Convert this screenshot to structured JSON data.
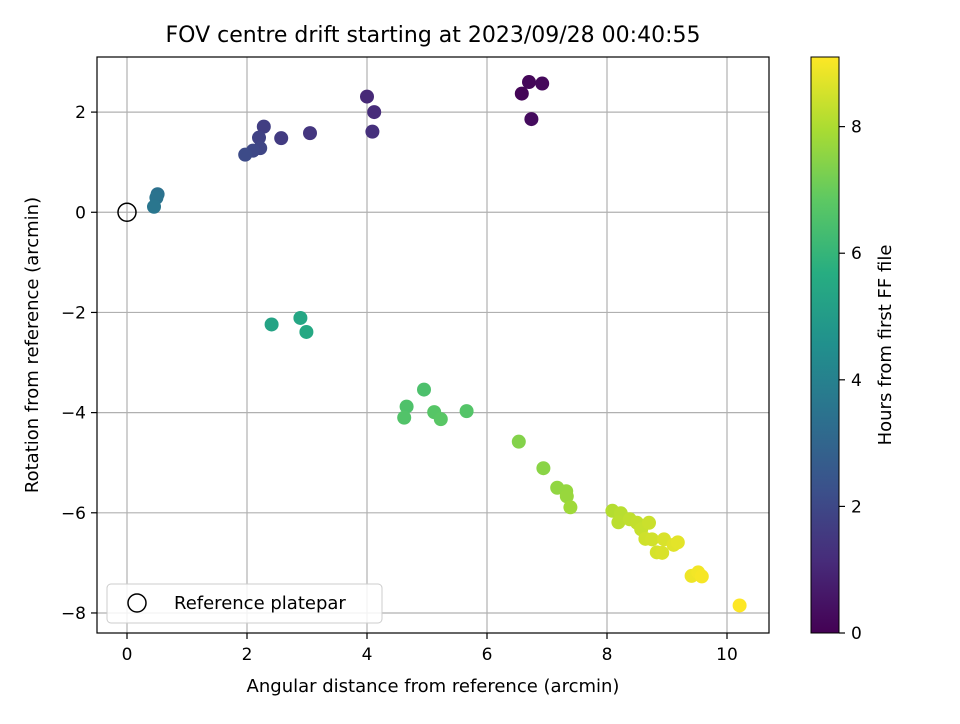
{
  "chart_data": {
    "type": "scatter",
    "title": "FOV centre drift starting at 2023/09/28 00:40:55",
    "xlabel": "Angular distance from reference (arcmin)",
    "ylabel": "Rotation from reference (arcmin)",
    "xlim": [
      -0.5,
      10.7
    ],
    "ylim": [
      -8.4,
      3.1
    ],
    "xticks": [
      0,
      2,
      4,
      6,
      8,
      10
    ],
    "yticks": [
      -8,
      -6,
      -4,
      -2,
      0,
      2
    ],
    "grid": true,
    "legend": {
      "placement": "lower-left",
      "entries": [
        "Reference platepar"
      ]
    },
    "reference_point": {
      "x": 0,
      "y": 0,
      "label": "Reference platepar"
    },
    "colorbar": {
      "label": "Hours from first FF file",
      "colormap": "viridis",
      "range": [
        0,
        9.1
      ],
      "ticks": [
        0,
        2,
        4,
        6,
        8
      ]
    },
    "points": [
      {
        "x": 6.58,
        "y": 2.37,
        "h": 0.1
      },
      {
        "x": 6.7,
        "y": 2.6,
        "h": 0.15
      },
      {
        "x": 6.92,
        "y": 2.57,
        "h": 0.2
      },
      {
        "x": 6.74,
        "y": 1.86,
        "h": 0.3
      },
      {
        "x": 4.0,
        "y": 2.31,
        "h": 1.05
      },
      {
        "x": 4.12,
        "y": 2.0,
        "h": 1.15
      },
      {
        "x": 4.09,
        "y": 1.61,
        "h": 1.25
      },
      {
        "x": 3.05,
        "y": 1.58,
        "h": 1.45
      },
      {
        "x": 2.57,
        "y": 1.48,
        "h": 1.6
      },
      {
        "x": 2.28,
        "y": 1.71,
        "h": 1.7
      },
      {
        "x": 2.2,
        "y": 1.49,
        "h": 1.8
      },
      {
        "x": 2.22,
        "y": 1.28,
        "h": 1.9
      },
      {
        "x": 2.1,
        "y": 1.23,
        "h": 2.0
      },
      {
        "x": 1.97,
        "y": 1.15,
        "h": 2.1
      },
      {
        "x": 0.51,
        "y": 0.36,
        "h": 3.4
      },
      {
        "x": 0.49,
        "y": 0.29,
        "h": 3.5
      },
      {
        "x": 0.45,
        "y": 0.11,
        "h": 3.6
      },
      {
        "x": 2.41,
        "y": -2.24,
        "h": 5.3
      },
      {
        "x": 2.89,
        "y": -2.11,
        "h": 5.4
      },
      {
        "x": 2.99,
        "y": -2.39,
        "h": 5.5
      },
      {
        "x": 4.95,
        "y": -3.54,
        "h": 6.5
      },
      {
        "x": 4.66,
        "y": -3.88,
        "h": 6.55
      },
      {
        "x": 4.62,
        "y": -4.1,
        "h": 6.6
      },
      {
        "x": 5.66,
        "y": -3.97,
        "h": 6.65
      },
      {
        "x": 5.12,
        "y": -3.99,
        "h": 6.7
      },
      {
        "x": 5.23,
        "y": -4.13,
        "h": 6.75
      },
      {
        "x": 6.53,
        "y": -4.58,
        "h": 7.4
      },
      {
        "x": 6.94,
        "y": -5.11,
        "h": 7.5
      },
      {
        "x": 7.17,
        "y": -5.5,
        "h": 7.6
      },
      {
        "x": 7.32,
        "y": -5.57,
        "h": 7.65
      },
      {
        "x": 7.33,
        "y": -5.67,
        "h": 7.7
      },
      {
        "x": 7.39,
        "y": -5.89,
        "h": 7.8
      },
      {
        "x": 8.09,
        "y": -5.96,
        "h": 8.1
      },
      {
        "x": 8.23,
        "y": -6.01,
        "h": 8.15
      },
      {
        "x": 8.19,
        "y": -6.19,
        "h": 8.2
      },
      {
        "x": 8.38,
        "y": -6.13,
        "h": 8.25
      },
      {
        "x": 8.5,
        "y": -6.2,
        "h": 8.3
      },
      {
        "x": 8.57,
        "y": -6.33,
        "h": 8.35
      },
      {
        "x": 8.7,
        "y": -6.2,
        "h": 8.4
      },
      {
        "x": 8.64,
        "y": -6.52,
        "h": 8.45
      },
      {
        "x": 8.75,
        "y": -6.53,
        "h": 8.5
      },
      {
        "x": 8.83,
        "y": -6.79,
        "h": 8.55
      },
      {
        "x": 8.92,
        "y": -6.8,
        "h": 8.6
      },
      {
        "x": 8.95,
        "y": -6.53,
        "h": 8.6
      },
      {
        "x": 9.11,
        "y": -6.64,
        "h": 8.7
      },
      {
        "x": 9.18,
        "y": -6.59,
        "h": 8.75
      },
      {
        "x": 9.41,
        "y": -7.26,
        "h": 8.9
      },
      {
        "x": 9.52,
        "y": -7.19,
        "h": 8.95
      },
      {
        "x": 9.58,
        "y": -7.27,
        "h": 9.0
      },
      {
        "x": 10.21,
        "y": -7.85,
        "h": 9.1
      }
    ]
  }
}
